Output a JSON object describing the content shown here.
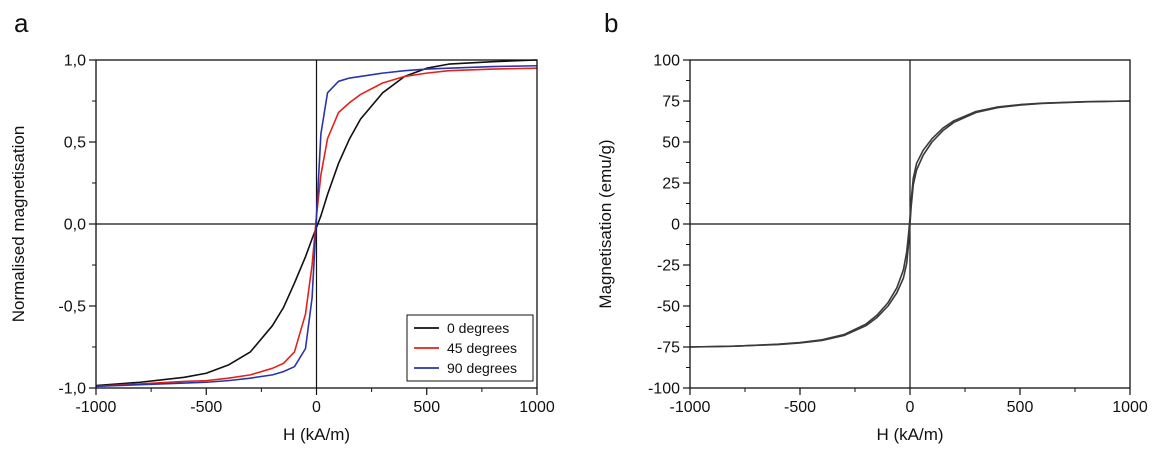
{
  "chart_data": [
    {
      "panel_label": "a",
      "type": "line",
      "xlabel": "H (kA/m)",
      "ylabel": "Normalised magnetisation",
      "xlim": [
        -1000,
        1000
      ],
      "ylim": [
        -1.0,
        1.0
      ],
      "xticks": [
        -1000,
        -500,
        0,
        500,
        1000
      ],
      "xtick_labels": [
        "-1000",
        "-500",
        "0",
        "500",
        "1000"
      ],
      "yticks": [
        -1.0,
        -0.5,
        0.0,
        0.5,
        1.0
      ],
      "ytick_labels": [
        "-1,0",
        "-0,5",
        "0,0",
        "0,5",
        "1,0"
      ],
      "zero_lines": true,
      "grid": false,
      "legend": "bottom-right",
      "series": [
        {
          "name": "0 degrees",
          "color": "#111111",
          "x": [
            -1000,
            -800,
            -600,
            -500,
            -400,
            -300,
            -200,
            -150,
            -100,
            -50,
            -20,
            0,
            20,
            50,
            100,
            150,
            200,
            300,
            400,
            500,
            600,
            800,
            1000
          ],
          "y": [
            -0.985,
            -0.965,
            -0.935,
            -0.91,
            -0.86,
            -0.78,
            -0.62,
            -0.51,
            -0.36,
            -0.2,
            -0.09,
            -0.02,
            0.05,
            0.18,
            0.37,
            0.52,
            0.64,
            0.8,
            0.9,
            0.95,
            0.975,
            0.99,
            1.0
          ]
        },
        {
          "name": "45 degrees",
          "color": "#e2231a",
          "x": [
            -1000,
            -800,
            -600,
            -500,
            -400,
            -300,
            -200,
            -150,
            -100,
            -50,
            -20,
            0,
            20,
            50,
            100,
            150,
            200,
            300,
            400,
            500,
            600,
            800,
            1000
          ],
          "y": [
            -0.99,
            -0.975,
            -0.96,
            -0.955,
            -0.94,
            -0.92,
            -0.88,
            -0.85,
            -0.78,
            -0.55,
            -0.25,
            0.05,
            0.3,
            0.52,
            0.68,
            0.74,
            0.79,
            0.86,
            0.9,
            0.92,
            0.935,
            0.945,
            0.95
          ]
        },
        {
          "name": "90 degrees",
          "color": "#2b35a8",
          "x": [
            -1000,
            -800,
            -600,
            -500,
            -400,
            -300,
            -200,
            -150,
            -100,
            -50,
            -20,
            0,
            20,
            50,
            100,
            150,
            200,
            300,
            400,
            500,
            600,
            800,
            1000
          ],
          "y": [
            -0.99,
            -0.98,
            -0.97,
            -0.965,
            -0.955,
            -0.94,
            -0.92,
            -0.9,
            -0.87,
            -0.76,
            -0.45,
            0.05,
            0.55,
            0.8,
            0.87,
            0.89,
            0.9,
            0.92,
            0.935,
            0.945,
            0.95,
            0.96,
            0.965
          ]
        }
      ]
    },
    {
      "panel_label": "b",
      "type": "line",
      "xlabel": "H (kA/m)",
      "ylabel": "Magnetisation (emu/g)",
      "xlim": [
        -1000,
        1000
      ],
      "ylim": [
        -100,
        100
      ],
      "xticks": [
        -1000,
        -500,
        0,
        500,
        1000
      ],
      "xtick_labels": [
        "-1000",
        "-500",
        "0",
        "500",
        "1000"
      ],
      "yticks": [
        -100,
        -75,
        -50,
        -25,
        0,
        25,
        50,
        75,
        100
      ],
      "ytick_labels": [
        "-100",
        "-75",
        "-50",
        "-25",
        "0",
        "25",
        "50",
        "75",
        "100"
      ],
      "zero_lines": true,
      "grid": false,
      "series": [
        {
          "color": "#3a3a3a",
          "x": [
            -1000,
            -800,
            -600,
            -500,
            -400,
            -300,
            -200,
            -150,
            -100,
            -60,
            -30,
            -15,
            -5,
            0,
            5,
            15,
            30,
            60,
            100,
            150,
            200,
            300,
            400,
            500,
            600,
            800,
            1000
          ],
          "y": [
            -75,
            -74.5,
            -73.5,
            -72.5,
            -71,
            -68,
            -62,
            -57,
            -50,
            -42,
            -33,
            -24,
            -10,
            0,
            10,
            24,
            33,
            42,
            50,
            57,
            62,
            68,
            71,
            72.5,
            73.5,
            74.5,
            75
          ]
        },
        {
          "color": "#3a3a3a",
          "x": [
            -1000,
            -800,
            -600,
            -500,
            -400,
            -300,
            -200,
            -150,
            -100,
            -60,
            -30,
            -15,
            -5,
            0,
            5,
            15,
            30,
            60,
            100,
            150,
            200,
            300,
            400,
            500,
            600,
            800,
            1000
          ],
          "y": [
            -75,
            -74.5,
            -73.3,
            -72.3,
            -70.6,
            -67.4,
            -61,
            -55.6,
            -48,
            -39,
            -28,
            -17,
            -4,
            4,
            14,
            28,
            37,
            45,
            52,
            58.5,
            63,
            68.6,
            71.4,
            72.8,
            73.7,
            74.6,
            75
          ]
        }
      ]
    }
  ]
}
